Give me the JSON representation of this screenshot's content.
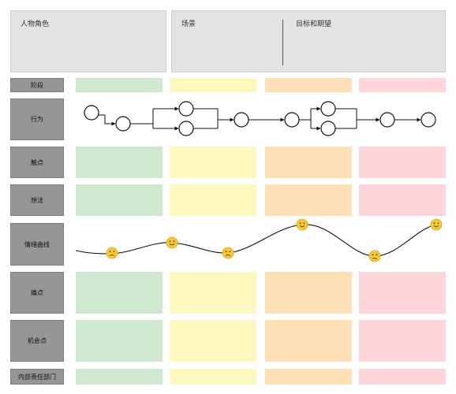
{
  "header": {
    "persona_label": "人物角色",
    "scenario_label": "场景",
    "goals_label": "目标和期望"
  },
  "rows": {
    "stage": "阶段",
    "behavior": "行为",
    "touchpoint": "触点",
    "thought": "想法",
    "emotion_curve": "情绪曲线",
    "pain_point": "痛点",
    "opportunity": "机会点",
    "department": "内部责任部门"
  },
  "stage_colors": [
    "#cfe8cf",
    "#fdf8c0",
    "#fde0b6",
    "#fdd5da"
  ],
  "emotions": [
    "sad",
    "happy",
    "sad",
    "happy",
    "sad",
    "happy"
  ]
}
